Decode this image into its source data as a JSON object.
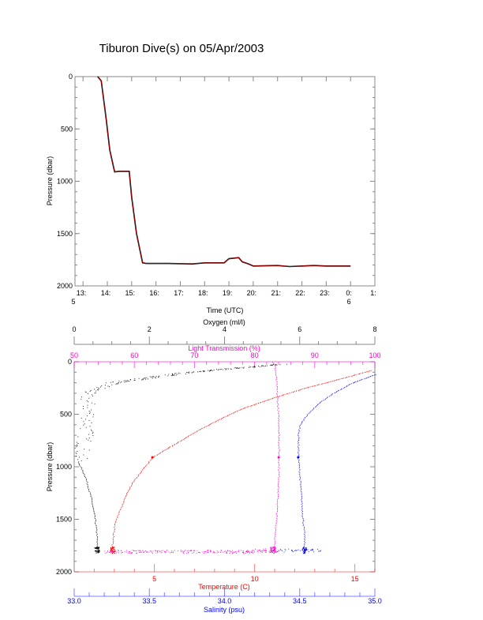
{
  "title": "Tiburon Dive(s) on 05/Apr/2003",
  "chart_data": [
    {
      "type": "line",
      "title": "Tiburon Dive(s) on 05/Apr/2003",
      "xlabel": "Time (UTC)",
      "ylabel": "Pressure (dbar)",
      "xlim": [
        12.67,
        25
      ],
      "ylim": [
        2000,
        0
      ],
      "x_ticks": [
        13,
        14,
        15,
        16,
        17,
        18,
        19,
        20,
        21,
        22,
        23,
        24,
        25
      ],
      "x_tick_labels": [
        "13:",
        "14:",
        "15:",
        "16:",
        "17:",
        "18:",
        "19:",
        "20:",
        "21:",
        "22:",
        "23:",
        "0:",
        "1:"
      ],
      "x_date_labels": [
        {
          "at": 12.67,
          "label": "5"
        },
        {
          "at": 24,
          "label": "6"
        }
      ],
      "y_ticks": [
        0,
        500,
        1000,
        1500,
        2000
      ],
      "y_tick_labels": [
        "0",
        "500",
        "1000",
        "1500",
        "2000"
      ],
      "series": [
        {
          "name": "Pressure",
          "color": "#cc0000",
          "x": [
            13.6,
            13.75,
            13.95,
            14.1,
            14.3,
            14.5,
            14.9,
            15.0,
            15.2,
            15.45,
            15.6,
            16.5,
            17.5,
            18.0,
            18.8,
            19.0,
            19.4,
            19.55,
            19.8,
            20.0,
            21.0,
            21.5,
            22.0,
            22.5,
            23.0,
            24.0
          ],
          "y": [
            0,
            40,
            400,
            700,
            910,
            905,
            905,
            1150,
            1500,
            1780,
            1785,
            1785,
            1790,
            1780,
            1780,
            1740,
            1730,
            1770,
            1790,
            1810,
            1805,
            1815,
            1810,
            1805,
            1810,
            1810
          ]
        }
      ]
    },
    {
      "type": "scatter",
      "ylabel": "Pressure (dbar)",
      "ylim": [
        2000,
        0
      ],
      "y_ticks": [
        0,
        500,
        1000,
        1500,
        2000
      ],
      "y_tick_labels": [
        "0",
        "500",
        "1000",
        "1500",
        "2000"
      ],
      "axes": {
        "oxygen": {
          "label": "Oxygen (ml/l)",
          "range": [
            0,
            8
          ],
          "ticks": [
            0,
            2,
            4,
            6,
            8
          ],
          "tick_labels": [
            "0",
            "2",
            "4",
            "6",
            "8"
          ],
          "color": "#000000",
          "position": "top"
        },
        "light": {
          "label": "Light Transmission (%)",
          "range": [
            50,
            100
          ],
          "ticks": [
            50,
            60,
            70,
            80,
            90,
            100
          ],
          "tick_labels": [
            "50",
            "60",
            "70",
            "80",
            "90",
            "100"
          ],
          "color": "#ff00cc",
          "position": "top"
        },
        "temperature": {
          "label": "Temperature (C)",
          "range": [
            1,
            16
          ],
          "ticks": [
            5,
            10,
            15
          ],
          "tick_labels": [
            "5",
            "10",
            "15"
          ],
          "color": "#ff0000",
          "position": "bottom"
        },
        "salinity": {
          "label": "Salinity (psu)",
          "range": [
            33,
            35
          ],
          "ticks": [
            33,
            33.5,
            34,
            34.5,
            35
          ],
          "tick_labels": [
            "33.0",
            "33.5",
            "34.0",
            "34.5",
            "35.0"
          ],
          "color": "#0000ff",
          "position": "bottom"
        }
      },
      "series": [
        {
          "name": "Oxygen",
          "axis": "oxygen",
          "color": "#000000",
          "pressure": [
            20,
            100,
            200,
            300,
            500,
            700,
            850,
            950,
            1100,
            1300,
            1500,
            1650,
            1750,
            1800
          ],
          "values": [
            5.5,
            3.0,
            1.0,
            0.3,
            0.4,
            0.3,
            0.2,
            0.1,
            0.3,
            0.45,
            0.55,
            0.6,
            0.6,
            0.6
          ]
        },
        {
          "name": "Temperature",
          "axis": "temperature",
          "color": "#ff0000",
          "pressure": [
            80,
            150,
            250,
            350,
            450,
            550,
            650,
            750,
            850,
            910,
            1000,
            1150,
            1300,
            1450,
            1550,
            1650,
            1750,
            1800
          ],
          "values": [
            15.8,
            14.5,
            12.5,
            10.8,
            9.3,
            8.2,
            7.2,
            6.3,
            5.4,
            4.9,
            4.5,
            3.9,
            3.5,
            3.2,
            3.0,
            2.95,
            2.9,
            2.9
          ]
        },
        {
          "name": "Light Transmission",
          "axis": "light",
          "color": "#ff00cc",
          "pressure": [
            0,
            50,
            200,
            400,
            600,
            800,
            910,
            1100,
            1300,
            1500,
            1650,
            1750,
            1800
          ],
          "values": [
            83.0,
            83.4,
            83.6,
            83.8,
            84.0,
            84.0,
            84.0,
            84.0,
            83.8,
            83.6,
            83.4,
            83.2,
            83.0
          ]
        },
        {
          "name": "Salinity",
          "axis": "salinity",
          "color": "#0000ff",
          "pressure": [
            120,
            200,
            300,
            400,
            500,
            600,
            700,
            800,
            910,
            1100,
            1300,
            1500,
            1650,
            1750,
            1800
          ],
          "values": [
            35.0,
            34.85,
            34.72,
            34.62,
            34.55,
            34.5,
            34.49,
            34.49,
            34.49,
            34.5,
            34.51,
            34.52,
            34.53,
            34.53,
            34.53
          ]
        }
      ]
    }
  ]
}
